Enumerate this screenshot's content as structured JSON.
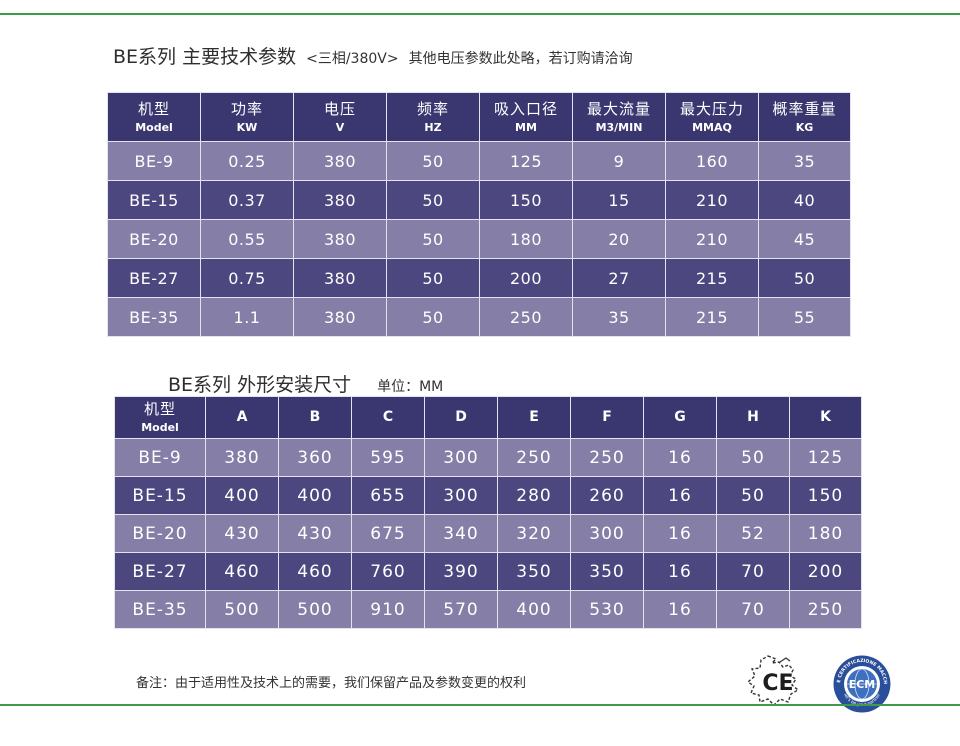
{
  "section1": {
    "title_main": "BE系列 主要技术参数",
    "title_sub": "<三相/380V>",
    "title_note": "其他电压参数此处略，若订购请洽询",
    "headers": [
      {
        "cn": "机型",
        "en": "Model"
      },
      {
        "cn": "功率",
        "en": "KW"
      },
      {
        "cn": "电压",
        "en": "V"
      },
      {
        "cn": "频率",
        "en": "HZ"
      },
      {
        "cn": "吸入口径",
        "en": "MM"
      },
      {
        "cn": "最大流量",
        "en": "M3/MIN"
      },
      {
        "cn": "最大压力",
        "en": "MMAQ"
      },
      {
        "cn": "概率重量",
        "en": "KG"
      }
    ],
    "rows": [
      [
        "BE-9",
        "0.25",
        "380",
        "50",
        "125",
        "9",
        "160",
        "35"
      ],
      [
        "BE-15",
        "0.37",
        "380",
        "50",
        "150",
        "15",
        "210",
        "40"
      ],
      [
        "BE-20",
        "0.55",
        "380",
        "50",
        "180",
        "20",
        "210",
        "45"
      ],
      [
        "BE-27",
        "0.75",
        "380",
        "50",
        "200",
        "27",
        "215",
        "50"
      ],
      [
        "BE-35",
        "1.1",
        "380",
        "50",
        "250",
        "35",
        "215",
        "55"
      ]
    ]
  },
  "section2": {
    "title_main": "BE系列 外形安装尺寸",
    "unit": "单位：MM",
    "header_first": {
      "cn": "机型",
      "en": "Model"
    },
    "headers": [
      "A",
      "B",
      "C",
      "D",
      "E",
      "F",
      "G",
      "H",
      "K"
    ],
    "rows": [
      [
        "BE-9",
        "380",
        "360",
        "595",
        "300",
        "250",
        "250",
        "16",
        "50",
        "125"
      ],
      [
        "BE-15",
        "400",
        "400",
        "655",
        "300",
        "280",
        "260",
        "16",
        "50",
        "150"
      ],
      [
        "BE-20",
        "430",
        "430",
        "675",
        "340",
        "320",
        "300",
        "16",
        "52",
        "180"
      ],
      [
        "BE-27",
        "460",
        "460",
        "760",
        "390",
        "350",
        "350",
        "16",
        "70",
        "200"
      ],
      [
        "BE-35",
        "500",
        "500",
        "910",
        "570",
        "400",
        "530",
        "16",
        "70",
        "250"
      ]
    ]
  },
  "footer": {
    "note": "备注：由于适用性及技术上的需要，我们保留产品及参数变更的权利",
    "ce_mark": "CE",
    "ecm_mark": "ECM",
    "ecm_ring_text": "ENTE CERTIFICAZIONE MACCHINE",
    "ecm_ring_bottom": "let's be your partner"
  },
  "colors": {
    "accent_green": "#3f9b49",
    "header_bg": "#3a3770",
    "row_light": "#857ea6",
    "row_dark": "#4c477e",
    "ecm_blue": "#2a4f9a"
  }
}
